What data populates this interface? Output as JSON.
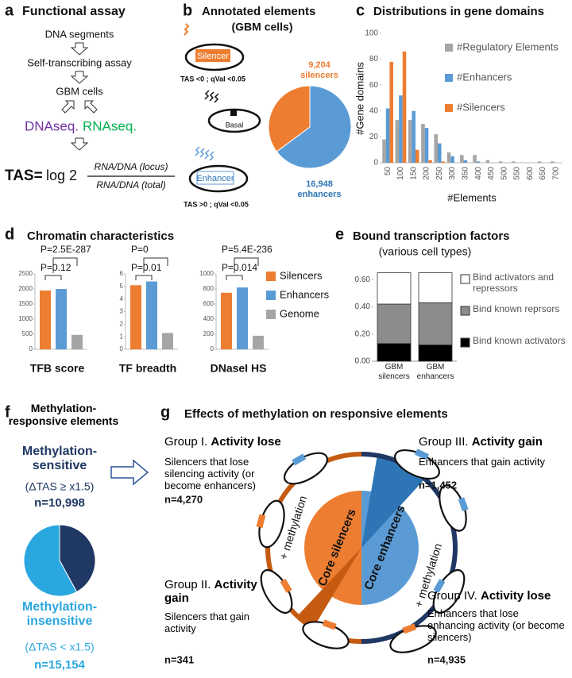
{
  "figure": {
    "a": {
      "letter": "a",
      "title": "Functional assay",
      "steps": [
        "DNA segments",
        "Self-transcribing assay",
        "GBM cells"
      ],
      "dnaseq": "DNAseq.",
      "rnaseq": "RNAseq.",
      "tas": "TAS=",
      "log": "log 2",
      "numerator": "RNA/DNA (locus)",
      "denominator": "RNA/DNA (total)"
    },
    "b": {
      "letter": "b",
      "title": "Annotated elements",
      "subtitle": "(GBM cells)",
      "silencer": "Silencer",
      "basal": "Basal",
      "enhancer": "Enhancer",
      "silencer_criterion": "TAS <0 ; qVal <0.05",
      "enhancer_criterion": "TAS >0 ; qVal <0.05"
    },
    "c": {
      "letter": "c"
    },
    "d": {
      "letter": "d",
      "title": "Chromatin characteristics"
    },
    "e": {
      "letter": "e"
    },
    "f": {
      "letter": "f",
      "title": "Methylation-responsive elements"
    },
    "g": {
      "letter": "g",
      "title": "Effects of methylation on responsive elements",
      "core_silencers": "Core silencers",
      "core_enhancers": "Core enhancers",
      "methylation": "+ methylation",
      "groups": [
        {
          "prefix": "Group I.",
          "name": "Activity lose",
          "description": "Silencers that lose silencing activity (or become enhancers)",
          "n": "n=4,270"
        },
        {
          "prefix": "Group II.",
          "name": "Activity gain",
          "description": "Silencers that gain activity",
          "n": "n=341"
        },
        {
          "prefix": "Group III.",
          "name": "Activity gain",
          "description": "Enhancers that gain activity",
          "n": "n=1,452"
        },
        {
          "prefix": "Group IV.",
          "name": "Activity lose",
          "description": "Enhancers that lose enhancing activity (or become silencers)",
          "n": "n=4,935"
        }
      ]
    }
  },
  "chart_data": [
    {
      "type": "pie",
      "categories": [
        "silencers",
        "enhancers"
      ],
      "values": [
        9204,
        16948
      ],
      "value_labels": [
        "9,204",
        "16,948"
      ],
      "colors": [
        "#ed7d31",
        "#5b9bd5"
      ]
    },
    {
      "type": "bar",
      "title": "Distributions in gene domains",
      "x_label": "#Elements",
      "y_label": "#Gene domains",
      "categories": [
        "50",
        "100",
        "150",
        "200",
        "250",
        "300",
        "350",
        "400",
        "450",
        "500",
        "550",
        "600",
        "650",
        "700"
      ],
      "series": [
        {
          "name": "#Regulatory Elements",
          "color": "#a5a5a5",
          "values": [
            18,
            33,
            33,
            30,
            22,
            8,
            6,
            6,
            2,
            1,
            1,
            0,
            1,
            1
          ]
        },
        {
          "name": "#Enhancers",
          "color": "#5b9bd5",
          "values": [
            42,
            52,
            40,
            27,
            15,
            5,
            2,
            1,
            0,
            0,
            0,
            0,
            0,
            0
          ]
        },
        {
          "name": "#Silencers",
          "color": "#ed7d31",
          "values": [
            78,
            86,
            10,
            2,
            1,
            0,
            0,
            0,
            0,
            0,
            0,
            0,
            0,
            0
          ]
        }
      ],
      "ylim": [
        0,
        100
      ],
      "yticks": [
        0,
        20,
        40,
        60,
        80,
        100
      ]
    },
    {
      "type": "bar",
      "x_label": "TFB score",
      "categories": [
        "Silencers",
        "Enhancers",
        "Genome"
      ],
      "values": [
        1950,
        2000,
        480
      ],
      "colors": [
        "#ed7d31",
        "#5b9bd5",
        "#a5a5a5"
      ],
      "ylim": [
        0,
        2500
      ],
      "yticks": [
        0,
        500,
        1000,
        1500,
        2000,
        2500
      ],
      "annotations": [
        "P=0.12",
        "P=2.5E-287"
      ]
    },
    {
      "type": "bar",
      "x_label": "TF breadth",
      "categories": [
        "Silencers",
        "Enhancers",
        "Genome"
      ],
      "values": [
        5.1,
        5.4,
        1.3
      ],
      "colors": [
        "#ed7d31",
        "#5b9bd5",
        "#a5a5a5"
      ],
      "ylim": [
        0,
        6
      ],
      "yticks": [
        0,
        1,
        2,
        3,
        4,
        5,
        6
      ],
      "annotations": [
        "P=0.01",
        "P=0"
      ]
    },
    {
      "type": "bar",
      "x_label": "DNaseI HS",
      "categories": [
        "Silencers",
        "Enhancers",
        "Genome"
      ],
      "values": [
        750,
        820,
        180
      ],
      "colors": [
        "#ed7d31",
        "#5b9bd5",
        "#a5a5a5"
      ],
      "ylim": [
        0,
        1000
      ],
      "yticks": [
        0,
        200,
        400,
        600,
        800,
        1000
      ],
      "annotations": [
        "P=0.014",
        "P=5.4E-236"
      ]
    },
    {
      "type": "stacked_bar",
      "title": "Bound transcription factors",
      "subtitle": "(various cell types)",
      "categories": [
        "GBM silencers",
        "GBM enhancers"
      ],
      "series": [
        {
          "name": "Bind known activators",
          "color": "#000000",
          "values": [
            0.13,
            0.12
          ]
        },
        {
          "name": "Bind known reprsors",
          "color": "#8c8c8c",
          "values": [
            0.29,
            0.31
          ]
        },
        {
          "name": "Bind activators and repressors",
          "color": "#ffffff",
          "values": [
            0.23,
            0.22
          ]
        }
      ],
      "ylim": [
        0,
        0.7
      ],
      "yticks": [
        {
          "value": 0,
          "label": "0.00"
        },
        {
          "value": 0.2,
          "label": "0.20"
        },
        {
          "value": 0.4,
          "label": "0.40"
        },
        {
          "value": 0.6,
          "label": "0.60"
        }
      ]
    },
    {
      "type": "pie",
      "categories": [
        "Methylation-sensitive",
        "Methylation-insensitive"
      ],
      "criteria": [
        "(ΔTAS ≥ x1.5)",
        "(ΔTAS < x1.5)"
      ],
      "values": [
        10998,
        15154
      ],
      "value_labels": [
        "n=10,998",
        "n=15,154"
      ],
      "colors": [
        "#1f3864",
        "#2aa7df"
      ]
    }
  ]
}
